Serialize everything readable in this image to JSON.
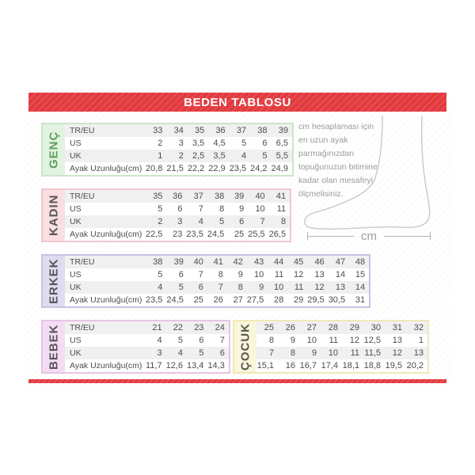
{
  "header": {
    "title": "BEDEN TABLOSU",
    "accent_color": "#e23a3e"
  },
  "tables": [
    {
      "label": "GENÇ",
      "colors": {
        "bg": "#e3f3e1",
        "border": "#cbe6c8",
        "text": "#5ba05b"
      },
      "rows": [
        {
          "header": "TR/EU",
          "values": [
            "33",
            "34",
            "35",
            "36",
            "37",
            "38",
            "39"
          ]
        },
        {
          "header": "US",
          "values": [
            "2",
            "3",
            "3,5",
            "4,5",
            "5",
            "6",
            "6,5"
          ]
        },
        {
          "header": "UK",
          "values": [
            "1",
            "2",
            "2,5",
            "3,5",
            "4",
            "5",
            "5,5"
          ]
        },
        {
          "header": "Ayak Uzunluğu(cm)",
          "values": [
            "20,8",
            "21,5",
            "22,2",
            "22,9",
            "23,5",
            "24,2",
            "24,9"
          ]
        }
      ]
    },
    {
      "label": "KADIN",
      "colors": {
        "bg": "#f9dee2",
        "border": "#f0c7ce",
        "text": "#555555"
      },
      "rows": [
        {
          "header": "TR/EU",
          "values": [
            "35",
            "36",
            "37",
            "38",
            "39",
            "40",
            "41"
          ]
        },
        {
          "header": "US",
          "values": [
            "5",
            "6",
            "7",
            "8",
            "9",
            "10",
            "11"
          ]
        },
        {
          "header": "UK",
          "values": [
            "2",
            "3",
            "4",
            "5",
            "6",
            "7",
            "8"
          ]
        },
        {
          "header": "Ayak Uzunluğu(cm)",
          "values": [
            "22,5",
            "23",
            "23,5",
            "24,5",
            "25",
            "25,5",
            "26,5"
          ]
        }
      ]
    },
    {
      "label": "ERKEK",
      "colors": {
        "bg": "#dedcf0",
        "border": "#c5c4e2",
        "text": "#555555"
      },
      "rows": [
        {
          "header": "TR/EU",
          "values": [
            "38",
            "39",
            "40",
            "41",
            "42",
            "43",
            "44",
            "45",
            "46",
            "47",
            "48"
          ]
        },
        {
          "header": "US",
          "values": [
            "5",
            "6",
            "7",
            "8",
            "9",
            "10",
            "11",
            "12",
            "13",
            "14",
            "15"
          ]
        },
        {
          "header": "UK",
          "values": [
            "4",
            "5",
            "6",
            "7",
            "8",
            "9",
            "10",
            "11",
            "12",
            "13",
            "14"
          ]
        },
        {
          "header": "Ayak Uzunluğu(cm)",
          "values": [
            "23,5",
            "24,5",
            "25",
            "26",
            "27",
            "27,5",
            "28",
            "29",
            "29,5",
            "30,5",
            "31"
          ]
        }
      ]
    },
    {
      "label": "BEBEK",
      "colors": {
        "bg": "#f4dcf3",
        "border": "#e7c4e5",
        "text": "#555555"
      },
      "rows": [
        {
          "header": "TR/EU",
          "values": [
            "21",
            "22",
            "23",
            "24"
          ]
        },
        {
          "header": "US",
          "values": [
            "4",
            "5",
            "6",
            "7"
          ]
        },
        {
          "header": "UK",
          "values": [
            "3",
            "4",
            "5",
            "6"
          ]
        },
        {
          "header": "Ayak Uzunluğu(cm)",
          "values": [
            "11,7",
            "12,6",
            "13,4",
            "14,3"
          ]
        }
      ]
    },
    {
      "label": "ÇOCUK",
      "colors": {
        "bg": "#f9f6d9",
        "border": "#eeeab5",
        "text": "#555555"
      },
      "rows": [
        {
          "header": null,
          "values": [
            "25",
            "26",
            "27",
            "28",
            "29",
            "30",
            "31",
            "32"
          ]
        },
        {
          "header": null,
          "values": [
            "8",
            "9",
            "10",
            "11",
            "12",
            "12,5",
            "13",
            "1"
          ]
        },
        {
          "header": null,
          "values": [
            "7",
            "8",
            "9",
            "10",
            "11",
            "11,5",
            "12",
            "13"
          ]
        },
        {
          "header": null,
          "values": [
            "15,1",
            "16",
            "16,7",
            "17,4",
            "18,1",
            "18,8",
            "19,5",
            "20,2"
          ]
        }
      ]
    }
  ],
  "instructions": {
    "text": "cm hesaplaması için en uzun ayak parmağınızdan topuğunuzun bitimine kadar olan mesafeyi ölçmelisiniz."
  },
  "measure": {
    "unit_label": "cm"
  }
}
